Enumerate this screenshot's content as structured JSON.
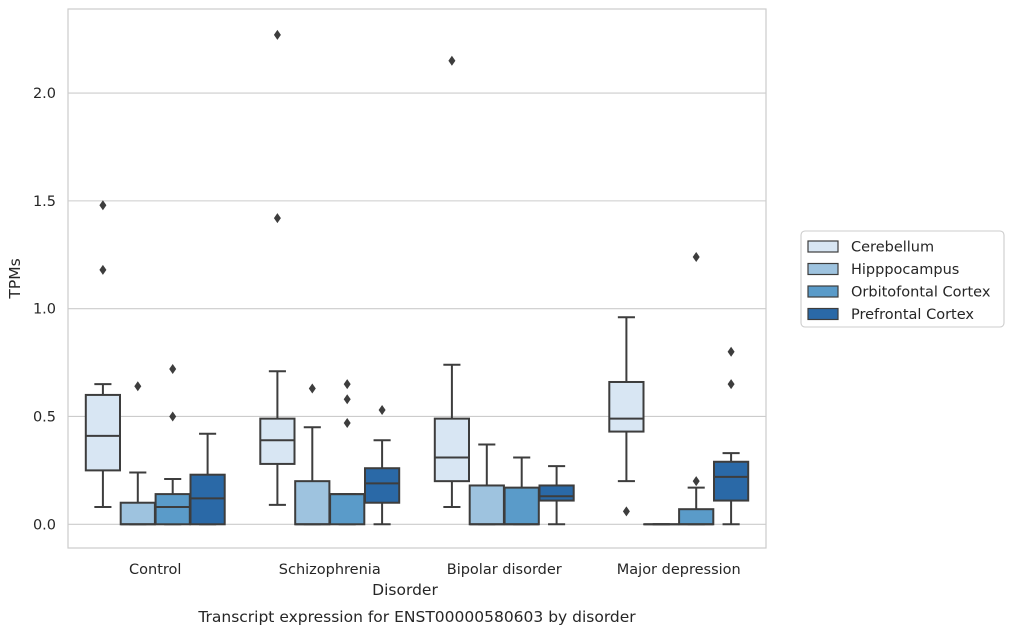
{
  "caption": "Transcript expression for ENST00000580603 by disorder",
  "chart_data": {
    "type": "boxplot",
    "xlabel": "Disorder",
    "ylabel": "TPMs",
    "ylim": [
      -0.11,
      2.39
    ],
    "yticks": [
      "0.0",
      "0.5",
      "1.0",
      "1.5",
      "2.0"
    ],
    "ytick_values": [
      0,
      0.5,
      1.0,
      1.5,
      2.0
    ],
    "grid": "horizontal",
    "legend_position": "right",
    "categories": [
      "Control",
      "Schizophrenia",
      "Bipolar disorder",
      "Major depression"
    ],
    "series": [
      {
        "name": "Cerebellum",
        "color": "#d8e6f3",
        "boxes": [
          {
            "q1": 0.25,
            "median": 0.41,
            "q3": 0.6,
            "whislo": 0.08,
            "whishi": 0.65,
            "fliers": [
              1.18,
              1.48
            ]
          },
          {
            "q1": 0.28,
            "median": 0.39,
            "q3": 0.49,
            "whislo": 0.09,
            "whishi": 0.71,
            "fliers": [
              1.42,
              2.27
            ]
          },
          {
            "q1": 0.2,
            "median": 0.31,
            "q3": 0.49,
            "whislo": 0.08,
            "whishi": 0.74,
            "fliers": [
              2.15
            ]
          },
          {
            "q1": 0.43,
            "median": 0.49,
            "q3": 0.66,
            "whislo": 0.2,
            "whishi": 0.96,
            "fliers": [
              0.06
            ]
          }
        ]
      },
      {
        "name": "Hipppocampus",
        "color": "#9ec3df",
        "boxes": [
          {
            "q1": 0.0,
            "median": 0.0,
            "q3": 0.1,
            "whislo": 0.0,
            "whishi": 0.24,
            "fliers": [
              0.64
            ]
          },
          {
            "q1": 0.0,
            "median": 0.0,
            "q3": 0.2,
            "whislo": 0.0,
            "whishi": 0.45,
            "fliers": [
              0.63
            ]
          },
          {
            "q1": 0.0,
            "median": 0.0,
            "q3": 0.18,
            "whislo": 0.0,
            "whishi": 0.37,
            "fliers": []
          },
          {
            "q1": 0.0,
            "median": 0.0,
            "q3": 0.0,
            "whislo": 0.0,
            "whishi": 0.0,
            "fliers": []
          }
        ]
      },
      {
        "name": "Orbitofontal Cortex",
        "color": "#5a9bc9",
        "boxes": [
          {
            "q1": 0.0,
            "median": 0.08,
            "q3": 0.14,
            "whislo": 0.0,
            "whishi": 0.21,
            "fliers": [
              0.5,
              0.72
            ]
          },
          {
            "q1": 0.0,
            "median": 0.14,
            "q3": 0.14,
            "whislo": 0.0,
            "whishi": 0.14,
            "fliers": [
              0.47,
              0.58,
              0.65
            ]
          },
          {
            "q1": 0.0,
            "median": 0.0,
            "q3": 0.17,
            "whislo": 0.0,
            "whishi": 0.31,
            "fliers": []
          },
          {
            "q1": 0.0,
            "median": 0.0,
            "q3": 0.07,
            "whislo": 0.0,
            "whishi": 0.17,
            "fliers": [
              0.2,
              1.24
            ]
          }
        ]
      },
      {
        "name": "Prefrontal Cortex",
        "color": "#2a69a7",
        "boxes": [
          {
            "q1": 0.0,
            "median": 0.12,
            "q3": 0.23,
            "whislo": 0.0,
            "whishi": 0.42,
            "fliers": []
          },
          {
            "q1": 0.1,
            "median": 0.19,
            "q3": 0.26,
            "whislo": 0.0,
            "whishi": 0.39,
            "fliers": [
              0.53
            ]
          },
          {
            "q1": 0.11,
            "median": 0.13,
            "q3": 0.18,
            "whislo": 0.0,
            "whishi": 0.27,
            "fliers": []
          },
          {
            "q1": 0.11,
            "median": 0.22,
            "q3": 0.29,
            "whislo": 0.0,
            "whishi": 0.33,
            "fliers": [
              0.65,
              0.8
            ]
          }
        ]
      }
    ]
  }
}
